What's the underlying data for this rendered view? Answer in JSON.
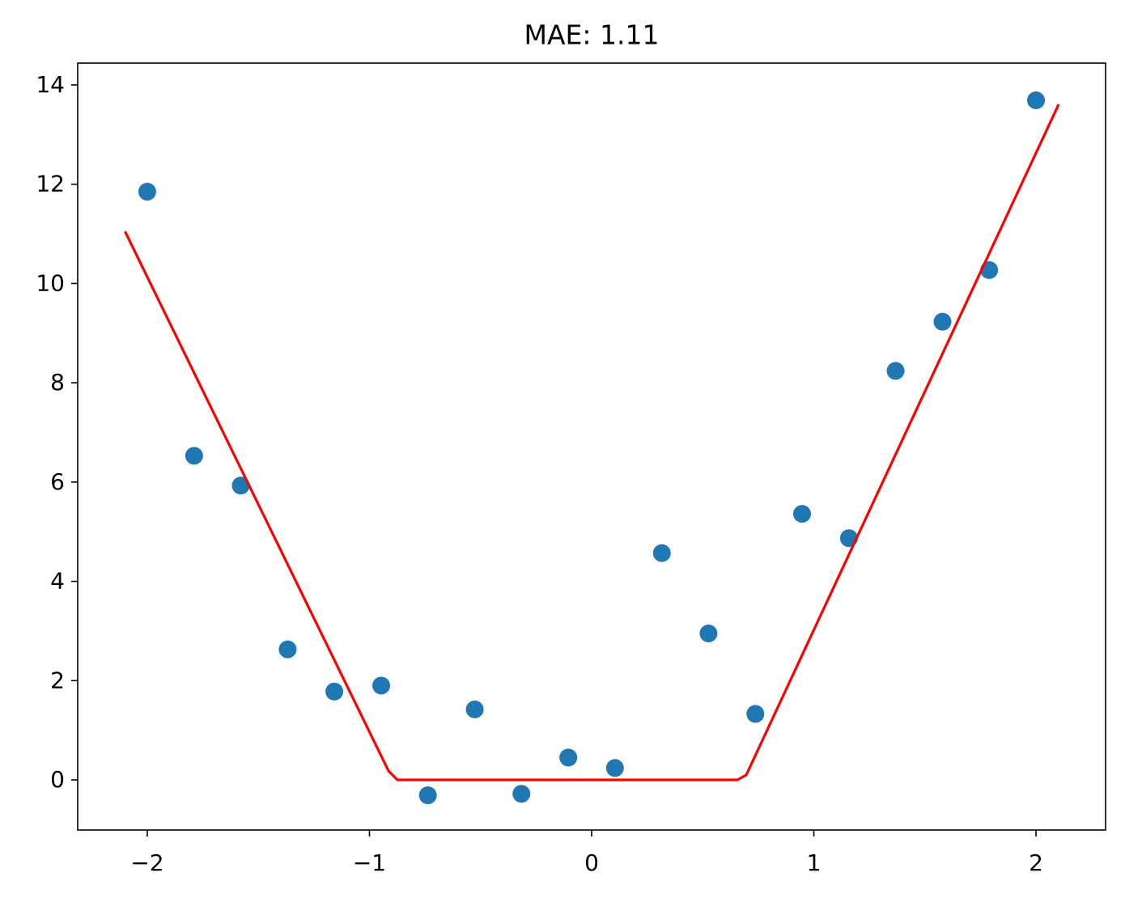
{
  "chart_data": {
    "type": "scatter",
    "title": "MAE: 1.11",
    "xlim": [
      -2.313,
      2.313
    ],
    "ylim": [
      -1.01,
      14.44
    ],
    "xticks": [
      {
        "value": -2,
        "label": "−2"
      },
      {
        "value": -1,
        "label": "−1"
      },
      0,
      1,
      2
    ],
    "yticks": [
      0,
      2,
      4,
      6,
      8,
      10,
      12,
      14
    ],
    "grid": false,
    "series": [
      {
        "type": "scatter",
        "color": "#1f77b4",
        "x": [
          -2,
          -1.789,
          -1.579,
          -1.368,
          -1.158,
          -0.947,
          -0.737,
          -0.526,
          -0.316,
          -0.105,
          0.105,
          0.316,
          0.526,
          0.737,
          0.947,
          1.158,
          1.368,
          1.579,
          1.789,
          2
        ],
        "values": [
          11.85,
          6.53,
          5.93,
          2.63,
          1.78,
          1.9,
          -0.31,
          1.42,
          -0.28,
          0.45,
          0.24,
          4.57,
          2.95,
          1.33,
          5.36,
          4.87,
          8.24,
          9.23,
          10.27,
          13.69
        ]
      },
      {
        "type": "line",
        "color": "#ff0000",
        "x": [
          -2.1,
          -0.914,
          -0.874,
          0.656,
          0.696,
          2.102
        ],
        "values": [
          11.05,
          0.18,
          0,
          0,
          0.1,
          13.61
        ]
      }
    ]
  }
}
